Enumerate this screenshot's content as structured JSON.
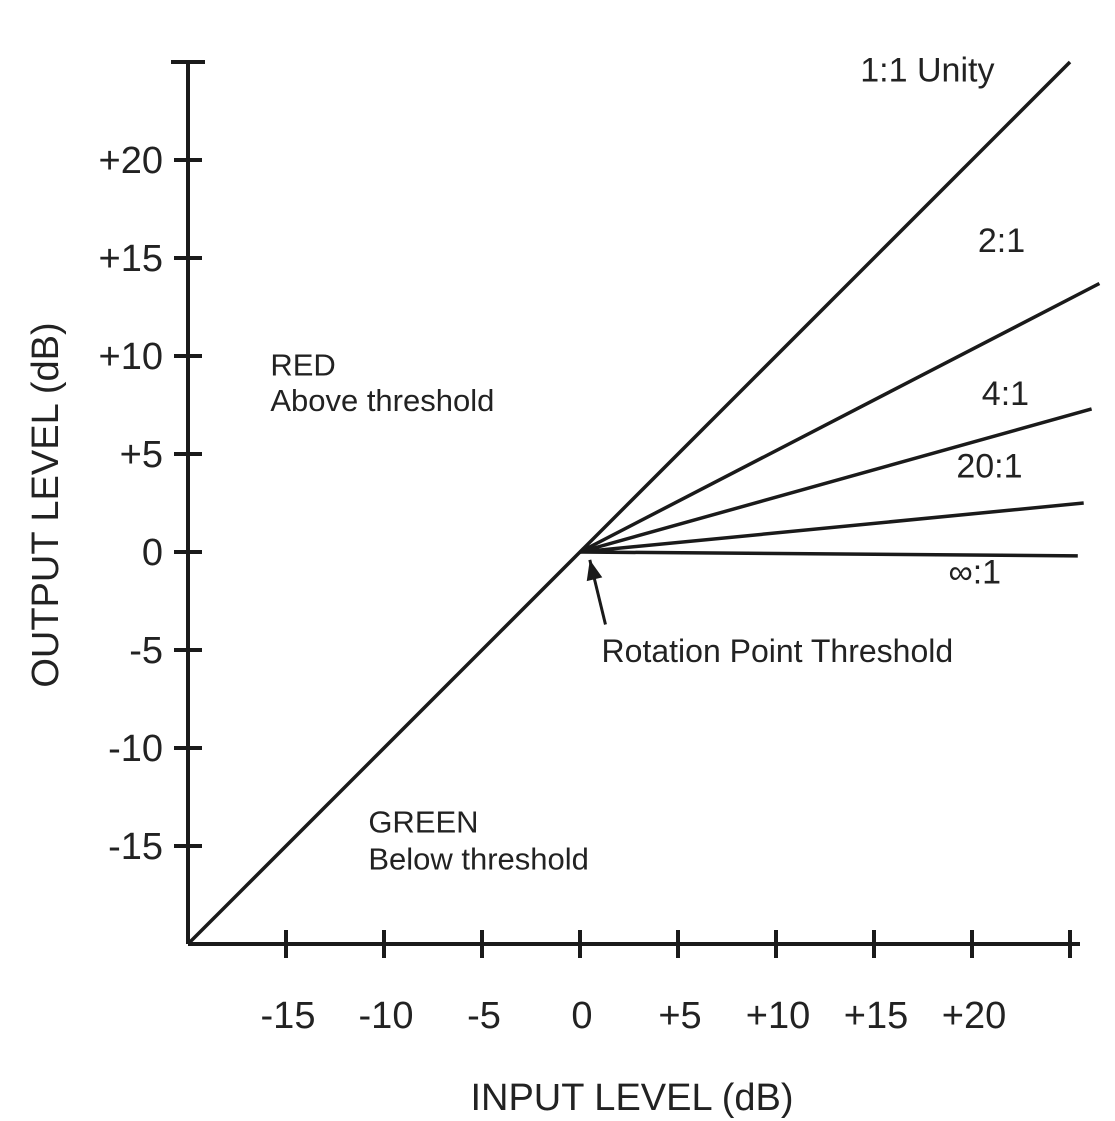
{
  "chart_data": {
    "type": "line",
    "title": "",
    "xlabel": "INPUT LEVEL (dB)",
    "ylabel": "OUTPUT LEVEL (dB)",
    "xlim": [
      -20,
      25
    ],
    "ylim": [
      -20,
      25
    ],
    "grid": false,
    "x_ticks": [
      -15,
      -10,
      -5,
      0,
      5,
      10,
      15,
      20,
      25
    ],
    "x_tick_labels": [
      "-15",
      "-10",
      "-5",
      "0",
      "+5",
      "+10",
      "+15",
      "+20",
      ""
    ],
    "y_ticks": [
      -15,
      -10,
      -5,
      0,
      5,
      10,
      15,
      20,
      25
    ],
    "y_tick_labels": [
      "-15",
      "-10",
      "-5",
      "0",
      "+5",
      "+10",
      "+15",
      "+20",
      ""
    ],
    "threshold": {
      "x": 0,
      "y": 0
    },
    "series": [
      {
        "name": "1:1 Unity",
        "x": [
          -20,
          25
        ],
        "y": [
          -20,
          25
        ]
      },
      {
        "name": "2:1",
        "x": [
          0,
          26.5
        ],
        "y": [
          0,
          13.7
        ]
      },
      {
        "name": "4:1",
        "x": [
          0,
          26.1
        ],
        "y": [
          0,
          7.3
        ]
      },
      {
        "name": "20:1",
        "x": [
          0,
          25.7
        ],
        "y": [
          0,
          2.5
        ]
      },
      {
        "name": "∞:1",
        "x": [
          0,
          25.4
        ],
        "y": [
          0,
          -0.2
        ]
      }
    ],
    "series_label_positions": [
      {
        "x": 14.3,
        "y": 24.0
      },
      {
        "x": 20.3,
        "y": 15.3
      },
      {
        "x": 20.5,
        "y": 7.5
      },
      {
        "x": 19.2,
        "y": 3.8
      },
      {
        "x": 18.8,
        "y": -1.6
      }
    ],
    "regions": [
      {
        "lines": [
          "RED",
          "Above threshold"
        ],
        "x": -15.8,
        "y": [
          9.0,
          7.2
        ]
      },
      {
        "lines": [
          "GREEN",
          "Below threshold"
        ],
        "x": -10.8,
        "y": [
          -14.3,
          -16.2
        ]
      }
    ],
    "annotations": [
      {
        "text": "Rotation Point Threshold",
        "x": 1.1,
        "y": -5.6,
        "arrow_from": [
          1.3,
          -3.7
        ],
        "arrow_to": [
          0.5,
          -0.4
        ]
      }
    ]
  }
}
